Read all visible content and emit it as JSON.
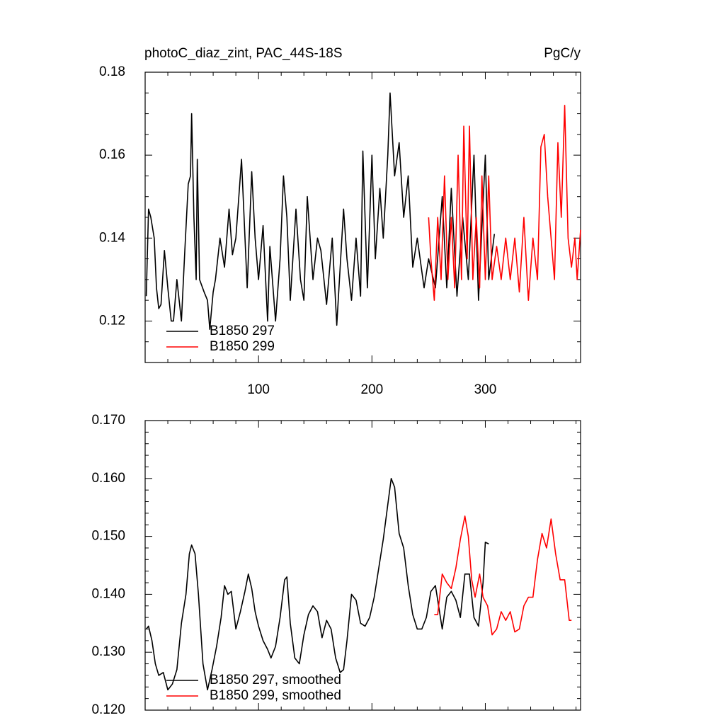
{
  "chart_data": [
    {
      "type": "line",
      "title": "photoC_diaz_zint, PAC_44S-18S",
      "units": "PgC/y",
      "xlim": [
        0,
        384
      ],
      "xticks": [
        100,
        200,
        300
      ],
      "xticklabels": true,
      "xminorticks": [
        20,
        40,
        60,
        80,
        120,
        140,
        160,
        180,
        220,
        240,
        260,
        280,
        320,
        340,
        360,
        380
      ],
      "ylim": [
        0.11,
        0.18
      ],
      "yticks": [
        0.12,
        0.14,
        0.16,
        0.18
      ],
      "yminorticks": [
        0.115,
        0.125,
        0.13,
        0.135,
        0.145,
        0.15,
        0.155,
        0.165,
        0.17,
        0.175
      ],
      "series": [
        {
          "name": "B1850 297",
          "color": "#000000",
          "x": [
            1,
            3,
            5,
            8,
            10,
            12,
            14,
            17,
            20,
            23,
            25,
            28,
            30,
            32,
            35,
            38,
            40,
            41,
            43,
            45,
            46,
            48,
            52,
            55,
            57,
            60,
            62,
            66,
            70,
            74,
            77,
            80,
            85,
            90,
            94,
            97,
            100,
            104,
            108,
            110,
            115,
            119,
            122,
            125,
            128,
            133,
            137,
            140,
            143,
            148,
            152,
            155,
            160,
            165,
            169,
            175,
            178,
            182,
            186,
            190,
            192,
            196,
            200,
            203,
            207,
            210,
            214,
            216,
            220,
            224,
            228,
            232,
            236,
            240,
            246,
            250,
            256,
            262,
            266,
            270,
            275,
            280,
            285,
            290,
            294,
            300,
            303,
            308
          ],
          "values": [
            0.126,
            0.147,
            0.145,
            0.14,
            0.128,
            0.123,
            0.124,
            0.137,
            0.128,
            0.12,
            0.12,
            0.13,
            0.125,
            0.12,
            0.137,
            0.153,
            0.155,
            0.17,
            0.145,
            0.13,
            0.159,
            0.13,
            0.127,
            0.125,
            0.118,
            0.127,
            0.13,
            0.14,
            0.133,
            0.147,
            0.136,
            0.14,
            0.159,
            0.128,
            0.156,
            0.14,
            0.13,
            0.143,
            0.12,
            0.138,
            0.12,
            0.135,
            0.155,
            0.145,
            0.125,
            0.147,
            0.13,
            0.125,
            0.15,
            0.13,
            0.14,
            0.137,
            0.124,
            0.14,
            0.119,
            0.147,
            0.135,
            0.125,
            0.14,
            0.126,
            0.161,
            0.128,
            0.16,
            0.135,
            0.152,
            0.14,
            0.16,
            0.175,
            0.155,
            0.163,
            0.145,
            0.155,
            0.133,
            0.14,
            0.128,
            0.135,
            0.128,
            0.15,
            0.128,
            0.152,
            0.126,
            0.145,
            0.13,
            0.16,
            0.125,
            0.16,
            0.13,
            0.141
          ]
        },
        {
          "name": "B1850 299",
          "color": "#ff0000",
          "x": [
            250,
            252,
            255,
            258,
            261,
            264,
            267,
            270,
            273,
            276,
            279,
            281,
            284,
            286,
            289,
            292,
            295,
            297,
            300,
            303,
            306,
            310,
            314,
            318,
            322,
            326,
            330,
            334,
            338,
            342,
            346,
            349,
            352,
            355,
            358,
            361,
            364,
            367,
            370,
            373,
            376,
            379,
            381,
            384
          ],
          "values": [
            0.145,
            0.135,
            0.125,
            0.145,
            0.13,
            0.155,
            0.13,
            0.145,
            0.128,
            0.16,
            0.13,
            0.167,
            0.135,
            0.167,
            0.13,
            0.145,
            0.128,
            0.155,
            0.13,
            0.155,
            0.13,
            0.138,
            0.13,
            0.14,
            0.13,
            0.14,
            0.127,
            0.145,
            0.125,
            0.14,
            0.13,
            0.162,
            0.165,
            0.15,
            0.14,
            0.13,
            0.163,
            0.145,
            0.172,
            0.14,
            0.133,
            0.14,
            0.13,
            0.142
          ]
        }
      ]
    },
    {
      "type": "line",
      "xlim": [
        0,
        384
      ],
      "xticks": [
        100,
        200,
        300
      ],
      "xticklabels": false,
      "xminorticks": [
        20,
        40,
        60,
        80,
        120,
        140,
        160,
        180,
        220,
        240,
        260,
        280,
        320,
        340,
        360,
        380
      ],
      "ylim": [
        0.12,
        0.17
      ],
      "yticks": [
        {
          "value": 0.12,
          "label": "0.120"
        },
        {
          "value": 0.13,
          "label": "0.130"
        },
        {
          "value": 0.14,
          "label": "0.140"
        },
        {
          "value": 0.15,
          "label": "0.150"
        },
        {
          "value": 0.16,
          "label": "0.160"
        },
        {
          "value": 0.17,
          "label": "0.170"
        }
      ],
      "yminorticks": [
        0.122,
        0.124,
        0.126,
        0.128,
        0.132,
        0.134,
        0.136,
        0.138,
        0.142,
        0.144,
        0.146,
        0.148,
        0.152,
        0.154,
        0.156,
        0.158,
        0.162,
        0.164,
        0.166,
        0.168
      ],
      "series": [
        {
          "name": "B1850 297, smoothed",
          "color": "#000000",
          "x": [
            1,
            3,
            6,
            9,
            12,
            16,
            20,
            24,
            28,
            32,
            36,
            39,
            41,
            44,
            47,
            51,
            55,
            59,
            63,
            67,
            70,
            73,
            76,
            80,
            84,
            88,
            91,
            94,
            97,
            100,
            104,
            108,
            111,
            115,
            119,
            123,
            125,
            128,
            132,
            136,
            140,
            144,
            148,
            152,
            156,
            160,
            164,
            168,
            172,
            175,
            178,
            182,
            186,
            190,
            194,
            198,
            202,
            206,
            210,
            214,
            217,
            220,
            224,
            228,
            232,
            236,
            240,
            244,
            248,
            252,
            256,
            260,
            262,
            266,
            270,
            274,
            278,
            282,
            286,
            290,
            294,
            298,
            300,
            303
          ],
          "values": [
            0.134,
            0.1345,
            0.132,
            0.128,
            0.126,
            0.1265,
            0.1235,
            0.1245,
            0.127,
            0.135,
            0.14,
            0.147,
            0.1485,
            0.147,
            0.14,
            0.128,
            0.1235,
            0.127,
            0.131,
            0.136,
            0.1415,
            0.14,
            0.1405,
            0.134,
            0.137,
            0.1405,
            0.1435,
            0.141,
            0.137,
            0.1345,
            0.132,
            0.1305,
            0.129,
            0.131,
            0.136,
            0.1425,
            0.143,
            0.135,
            0.129,
            0.128,
            0.133,
            0.1365,
            0.138,
            0.137,
            0.1325,
            0.1355,
            0.134,
            0.129,
            0.1265,
            0.127,
            0.132,
            0.14,
            0.139,
            0.135,
            0.1345,
            0.136,
            0.1395,
            0.1445,
            0.1495,
            0.1555,
            0.16,
            0.1585,
            0.1505,
            0.148,
            0.1415,
            0.1365,
            0.134,
            0.134,
            0.136,
            0.1405,
            0.1415,
            0.1365,
            0.134,
            0.1395,
            0.1405,
            0.139,
            0.136,
            0.1435,
            0.1435,
            0.136,
            0.1345,
            0.142,
            0.149,
            0.1487
          ]
        },
        {
          "name": "B1850 299, smoothed",
          "color": "#ff0000",
          "x": [
            255,
            258,
            262,
            266,
            270,
            274,
            278,
            282,
            285,
            288,
            291,
            295,
            298,
            302,
            306,
            310,
            314,
            318,
            322,
            326,
            330,
            334,
            338,
            342,
            346,
            350,
            354,
            358,
            362,
            366,
            370,
            374,
            376
          ],
          "values": [
            0.1365,
            0.1365,
            0.1435,
            0.142,
            0.141,
            0.1445,
            0.1495,
            0.1535,
            0.15,
            0.1425,
            0.1395,
            0.1435,
            0.1395,
            0.138,
            0.133,
            0.134,
            0.137,
            0.1355,
            0.137,
            0.1335,
            0.134,
            0.138,
            0.1395,
            0.1395,
            0.146,
            0.1505,
            0.148,
            0.153,
            0.147,
            0.1425,
            0.1425,
            0.1355,
            0.1355
          ]
        }
      ]
    }
  ]
}
